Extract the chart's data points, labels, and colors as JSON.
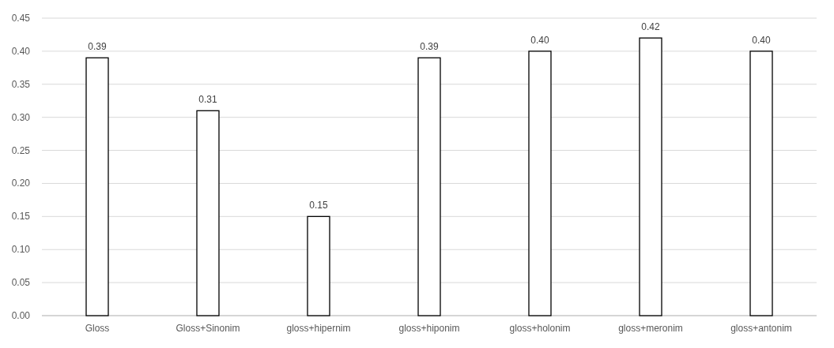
{
  "chart_data": {
    "type": "bar",
    "categories": [
      "Gloss",
      "Gloss+Sinonim",
      "gloss+hipernim",
      "gloss+hiponim",
      "gloss+holonim",
      "gloss+meronim",
      "gloss+antonim"
    ],
    "values": [
      0.39,
      0.31,
      0.15,
      0.39,
      0.4,
      0.42,
      0.4
    ],
    "color": "#ffffff",
    "ylim": [
      0,
      0.45
    ],
    "yticks": [
      {
        "value": 0,
        "label": "0.00"
      },
      {
        "value": 0.05,
        "label": "0.05"
      },
      {
        "value": 0.1,
        "label": "0.10"
      },
      {
        "value": 0.15,
        "label": "0.15"
      },
      {
        "value": 0.2,
        "label": "0.20"
      },
      {
        "value": 0.25,
        "label": "0.25"
      },
      {
        "value": 0.3,
        "label": "0.30"
      },
      {
        "value": 0.35,
        "label": "0.35"
      },
      {
        "value": 0.4,
        "label": "0.40"
      },
      {
        "value": 0.45,
        "label": "0.45"
      }
    ],
    "value_labels": [
      "0.39",
      "0.31",
      "0.15",
      "0.39",
      "0.40",
      "0.42",
      "0.40"
    ],
    "grid": "y"
  }
}
